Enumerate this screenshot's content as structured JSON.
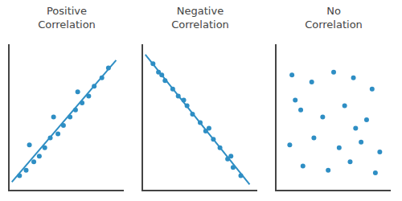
{
  "chart_data": [
    {
      "type": "scatter",
      "title": "Positive\nCorrelation",
      "xlim": [
        -0.02,
        1.02
      ],
      "ylim": [
        -0.02,
        1.02
      ],
      "tick_labels": false,
      "grid": false,
      "series": [
        {
          "type": "scatter",
          "marker": "circle",
          "color": "#2e8ec4",
          "x": [
            0.07,
            0.13,
            0.2,
            0.25,
            0.3,
            0.35,
            0.42,
            0.47,
            0.53,
            0.58,
            0.64,
            0.7,
            0.75,
            0.82,
            0.88,
            0.16,
            0.38,
            0.6
          ],
          "values": [
            0.08,
            0.12,
            0.18,
            0.22,
            0.28,
            0.35,
            0.38,
            0.44,
            0.5,
            0.55,
            0.6,
            0.65,
            0.72,
            0.78,
            0.85,
            0.3,
            0.5,
            0.68
          ]
        },
        {
          "type": "line",
          "line_style": "solid",
          "color": "#2e8ec4",
          "x": [
            0.0,
            0.95
          ],
          "values": [
            0.035,
            0.906
          ]
        }
      ]
    },
    {
      "type": "scatter",
      "title": "Negative\nCorrelation",
      "xlim": [
        -0.02,
        1.02
      ],
      "ylim": [
        -0.02,
        1.02
      ],
      "tick_labels": false,
      "grid": false,
      "series": [
        {
          "type": "scatter",
          "marker": "circle",
          "color": "#2e8ec4",
          "x": [
            0.07,
            0.12,
            0.18,
            0.25,
            0.3,
            0.38,
            0.43,
            0.5,
            0.55,
            0.62,
            0.68,
            0.75,
            0.8,
            0.87,
            0.15,
            0.35,
            0.58,
            0.78
          ],
          "values": [
            0.88,
            0.82,
            0.76,
            0.7,
            0.65,
            0.58,
            0.52,
            0.46,
            0.4,
            0.34,
            0.28,
            0.2,
            0.14,
            0.08,
            0.8,
            0.62,
            0.42,
            0.22
          ]
        },
        {
          "type": "line",
          "line_style": "solid",
          "color": "#2e8ec4",
          "x": [
            0.0,
            0.95
          ],
          "values": [
            0.946,
            0.018
          ]
        }
      ]
    },
    {
      "type": "scatter",
      "title": "No\nCorrelation",
      "xlim": [
        -0.02,
        1.02
      ],
      "ylim": [
        -0.02,
        1.02
      ],
      "tick_labels": false,
      "grid": false,
      "series": [
        {
          "type": "scatter",
          "marker": "circle",
          "color": "#2e8ec4",
          "x": [
            0.12,
            0.3,
            0.5,
            0.68,
            0.85,
            0.2,
            0.4,
            0.6,
            0.8,
            0.1,
            0.32,
            0.55,
            0.75,
            0.92,
            0.22,
            0.45,
            0.65,
            0.88,
            0.15,
            0.7
          ],
          "values": [
            0.8,
            0.75,
            0.82,
            0.78,
            0.7,
            0.55,
            0.5,
            0.58,
            0.48,
            0.3,
            0.35,
            0.28,
            0.32,
            0.25,
            0.15,
            0.12,
            0.18,
            0.1,
            0.62,
            0.42
          ]
        }
      ]
    }
  ]
}
